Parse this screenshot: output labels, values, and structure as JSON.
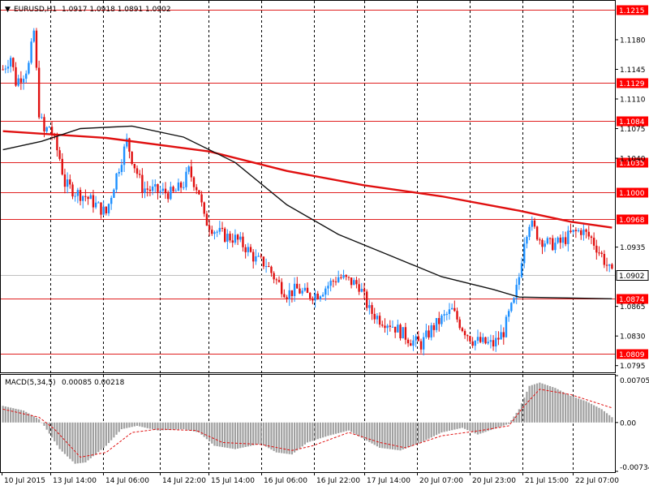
{
  "header": {
    "symbol_label": "EURUSD,H1",
    "ohlc": "1.0917 1.0918 1.0891 1.0902",
    "collapse_glyph": "▼"
  },
  "macd": {
    "label": "MACD(5,34,5)",
    "values": "0.00085 0.00218",
    "ticks": [
      "0.00705",
      "0.00",
      "-0.00734"
    ]
  },
  "colors": {
    "bull": "#1e90ff",
    "bear": "#e01010",
    "level_line": "#e02020",
    "ma_slow": "#e01010",
    "ma_fast": "#111111",
    "price_tag_bg": "#ff0000",
    "current_tag_bg": "#ffffff"
  },
  "chart_data": [
    {
      "type": "candlestick",
      "title": "EURUSD,H1",
      "ylim": [
        1.0788,
        1.1225
      ],
      "y_ticks": [
        "1.1180",
        "1.1145",
        "1.1110",
        "1.1075",
        "1.1040",
        "1.0935",
        "1.0865",
        "1.0830",
        "1.0795"
      ],
      "levels": [
        {
          "value": 1.1215,
          "label": "1.1215"
        },
        {
          "value": 1.1129,
          "label": "1.1129"
        },
        {
          "value": 1.1084,
          "label": "1.1084"
        },
        {
          "value": 1.1035,
          "label": "1.1035"
        },
        {
          "value": 1.1,
          "label": "1.1000"
        },
        {
          "value": 1.0968,
          "label": "1.0968"
        },
        {
          "value": 1.0874,
          "label": "1.0874"
        },
        {
          "value": 1.0809,
          "label": "1.0809"
        }
      ],
      "current_price": {
        "value": 1.0902,
        "label": "1.0902"
      },
      "x_labels": [
        "10 Jul 2015",
        "13 Jul 14:00",
        "14 Jul 06:00",
        "14 Jul 22:00",
        "15 Jul 14:00",
        "16 Jul 06:00",
        "16 Jul 22:00",
        "17 Jul 14:00",
        "20 Jul 07:00",
        "20 Jul 23:00",
        "21 Jul 15:00",
        "22 Jul 07:00"
      ],
      "close_path": [
        [
          0,
          1.1145
        ],
        [
          3,
          1.116
        ],
        [
          5,
          1.113
        ],
        [
          8,
          1.114
        ],
        [
          10,
          1.115
        ],
        [
          12,
          1.119
        ],
        [
          14,
          1.1095
        ],
        [
          16,
          1.107
        ],
        [
          18,
          1.1078
        ],
        [
          22,
          1.104
        ],
        [
          24,
          1.101
        ],
        [
          28,
          1.1
        ],
        [
          32,
          1.0995
        ],
        [
          36,
          1.0985
        ],
        [
          40,
          1.0975
        ],
        [
          44,
          1.102
        ],
        [
          48,
          1.106
        ],
        [
          50,
          1.104
        ],
        [
          54,
          1.1005
        ],
        [
          58,
          1.1002
        ],
        [
          62,
          1.1
        ],
        [
          66,
          1.0998
        ],
        [
          70,
          1.101
        ],
        [
          72,
          1.1025
        ],
        [
          76,
          1.1
        ],
        [
          78,
          1.0968
        ],
        [
          82,
          1.0955
        ],
        [
          86,
          1.0948
        ],
        [
          90,
          1.0945
        ],
        [
          94,
          1.0935
        ],
        [
          98,
          1.092
        ],
        [
          102,
          1.0915
        ],
        [
          106,
          1.0895
        ],
        [
          110,
          1.088
        ],
        [
          114,
          1.0885
        ],
        [
          118,
          1.0878
        ],
        [
          122,
          1.088
        ],
        [
          126,
          1.089
        ],
        [
          130,
          1.09
        ],
        [
          134,
          1.0895
        ],
        [
          138,
          1.089
        ],
        [
          142,
          1.086
        ],
        [
          146,
          1.085
        ],
        [
          150,
          1.0845
        ],
        [
          154,
          1.0835
        ],
        [
          158,
          1.0825
        ],
        [
          162,
          1.082
        ],
        [
          166,
          1.0838
        ],
        [
          170,
          1.085
        ],
        [
          174,
          1.086
        ],
        [
          178,
          1.084
        ],
        [
          182,
          1.0825
        ],
        [
          186,
          1.0822
        ],
        [
          190,
          1.082
        ],
        [
          194,
          1.0835
        ],
        [
          196,
          1.0855
        ],
        [
          198,
          1.087
        ],
        [
          200,
          1.09
        ],
        [
          202,
          1.0945
        ],
        [
          204,
          1.0965
        ],
        [
          208,
          1.0945
        ],
        [
          212,
          1.0938
        ],
        [
          216,
          1.094
        ],
        [
          220,
          1.095
        ],
        [
          224,
          1.0955
        ],
        [
          228,
          1.0945
        ],
        [
          232,
          1.0925
        ],
        [
          236,
          1.0902
        ]
      ],
      "ma_slow": [
        [
          0,
          1.1072
        ],
        [
          40,
          1.1064
        ],
        [
          80,
          1.1048
        ],
        [
          110,
          1.1025
        ],
        [
          140,
          1.1008
        ],
        [
          170,
          1.0995
        ],
        [
          200,
          1.0978
        ],
        [
          220,
          1.0965
        ],
        [
          236,
          1.0958
        ]
      ],
      "ma_fast": [
        [
          0,
          1.105
        ],
        [
          15,
          1.106
        ],
        [
          30,
          1.1075
        ],
        [
          50,
          1.1078
        ],
        [
          70,
          1.1065
        ],
        [
          90,
          1.1035
        ],
        [
          110,
          1.0985
        ],
        [
          130,
          1.095
        ],
        [
          150,
          1.0925
        ],
        [
          170,
          1.09
        ],
        [
          190,
          1.0885
        ],
        [
          200,
          1.0876
        ],
        [
          236,
          1.0874
        ]
      ],
      "grid": "vertical dashed"
    },
    {
      "type": "bar",
      "title": "MACD(5,34,5)",
      "ylim": [
        -0.00734,
        0.00705
      ],
      "histogram_path": [
        [
          0,
          0.0025
        ],
        [
          8,
          0.0018
        ],
        [
          14,
          0.0005
        ],
        [
          16,
          -0.0005
        ],
        [
          22,
          -0.004
        ],
        [
          28,
          -0.0062
        ],
        [
          32,
          -0.006
        ],
        [
          40,
          -0.0035
        ],
        [
          46,
          -0.001
        ],
        [
          52,
          -0.0005
        ],
        [
          60,
          -0.0012
        ],
        [
          70,
          -0.001
        ],
        [
          76,
          -0.0015
        ],
        [
          82,
          -0.0035
        ],
        [
          90,
          -0.004
        ],
        [
          100,
          -0.0032
        ],
        [
          106,
          -0.0045
        ],
        [
          112,
          -0.0048
        ],
        [
          118,
          -0.003
        ],
        [
          126,
          -0.002
        ],
        [
          134,
          -0.0012
        ],
        [
          140,
          -0.0025
        ],
        [
          146,
          -0.0038
        ],
        [
          154,
          -0.0042
        ],
        [
          162,
          -0.003
        ],
        [
          170,
          -0.0015
        ],
        [
          178,
          -0.0008
        ],
        [
          184,
          -0.0018
        ],
        [
          190,
          -0.001
        ],
        [
          196,
          -0.0002
        ],
        [
          200,
          0.002
        ],
        [
          204,
          0.0055
        ],
        [
          208,
          0.006
        ],
        [
          214,
          0.0052
        ],
        [
          220,
          0.004
        ],
        [
          226,
          0.0032
        ],
        [
          232,
          0.002
        ],
        [
          236,
          0.0008
        ]
      ],
      "signal_path": [
        [
          0,
          0.002
        ],
        [
          14,
          0.0008
        ],
        [
          20,
          -0.001
        ],
        [
          30,
          -0.0052
        ],
        [
          40,
          -0.0045
        ],
        [
          50,
          -0.0015
        ],
        [
          60,
          -0.001
        ],
        [
          75,
          -0.0012
        ],
        [
          85,
          -0.003
        ],
        [
          100,
          -0.0033
        ],
        [
          112,
          -0.0042
        ],
        [
          120,
          -0.0035
        ],
        [
          134,
          -0.0015
        ],
        [
          146,
          -0.003
        ],
        [
          156,
          -0.0038
        ],
        [
          170,
          -0.002
        ],
        [
          185,
          -0.0012
        ],
        [
          196,
          -0.0005
        ],
        [
          202,
          0.0025
        ],
        [
          208,
          0.005
        ],
        [
          220,
          0.0042
        ],
        [
          236,
          0.0022
        ]
      ]
    }
  ]
}
